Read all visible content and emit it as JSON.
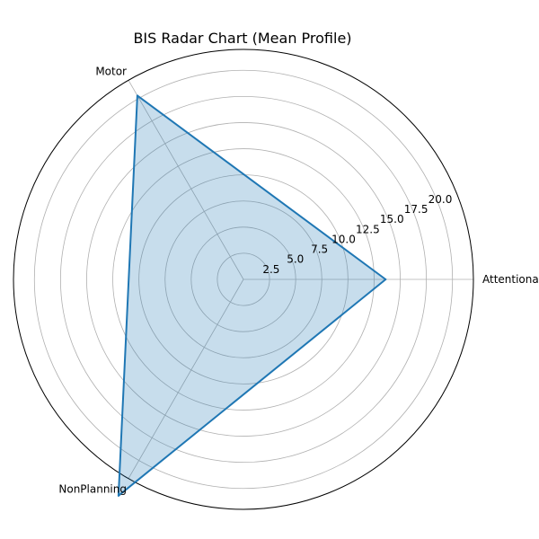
{
  "chart_data": {
    "type": "radar",
    "title": "BIS Radar Chart (Mean Profile)",
    "categories": [
      "Attentional",
      "Motor",
      "NonPlanning"
    ],
    "series": [
      {
        "values": [
          13.6,
          20.3,
          23.9
        ]
      }
    ],
    "rlim": [
      0,
      22
    ],
    "r_ticks": [
      "2.5",
      "5.0",
      "7.5",
      "10.0",
      "12.5",
      "15.0",
      "17.5",
      "20.0"
    ],
    "grid": true,
    "colors": {
      "line": "#1f77b4",
      "fill": "#1f77b4",
      "grid": "#b0b0b0"
    }
  }
}
